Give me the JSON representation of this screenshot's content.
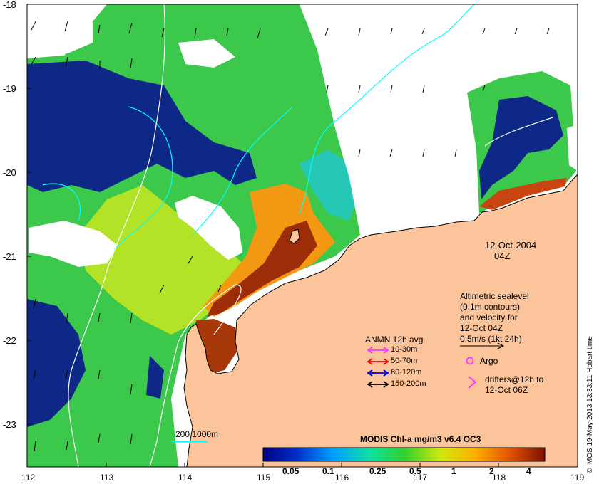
{
  "map": {
    "date_line1": "12-Oct-2004",
    "date_line2": "04Z",
    "lat_ticks": [
      "-18",
      "-19",
      "-20",
      "-21",
      "-22",
      "-23"
    ],
    "lon_ticks": [
      "112",
      "113",
      "114",
      "115",
      "116",
      "117",
      "118",
      "119"
    ],
    "scale_label": "200  1000m",
    "credit": "© IMOS 19-May-2013 13:33:11 Hobart time"
  },
  "altimetry": {
    "line1": "Altimetric sealevel",
    "line2": "(0.1m contours)",
    "line3": "and velocity for",
    "line4": "12-Oct 04Z",
    "line5": "0.5m/s (1kt 24h)"
  },
  "anmn_legend": {
    "title": "ANMN 12h avg",
    "items": [
      {
        "label": "10-30m",
        "color": "#ff33ff"
      },
      {
        "label": "50-70m",
        "color": "#ff0000"
      },
      {
        "label": "80-120m",
        "color": "#0000ff"
      },
      {
        "label": "150-200m",
        "color": "#000000"
      }
    ]
  },
  "argo": {
    "label": "Argo",
    "color": "#ff33ff"
  },
  "drifters": {
    "line1": "drifters@12h to",
    "line2": "12-Oct 06Z",
    "color": "#ff33ff"
  },
  "colorbar": {
    "title": "MODIS Chl-a mg/m3 v6.4 OC3",
    "ticks": [
      "0.05",
      "0.1",
      "0.25",
      "0.5",
      "1",
      "2",
      "4"
    ]
  },
  "colors": {
    "land": "#fcc49a",
    "contour": "#00ffff",
    "ocean_high": "#8b1c06",
    "ocean_mid": "#3cd23c",
    "ocean_low": "#000080"
  }
}
